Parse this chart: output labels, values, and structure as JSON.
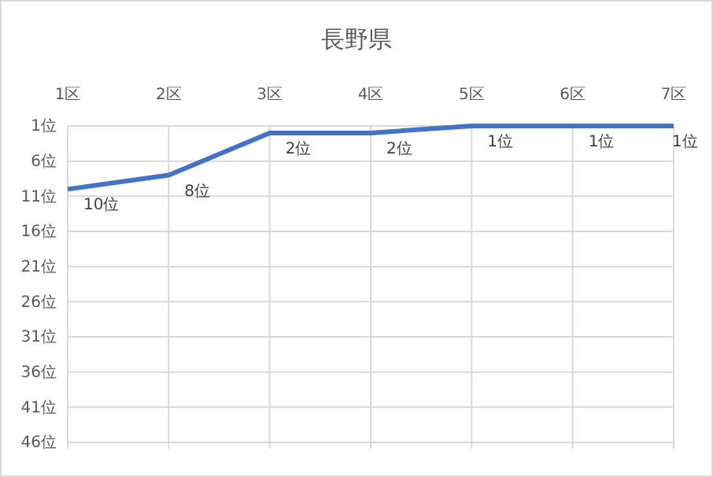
{
  "chart_data": {
    "type": "line",
    "title": "長野県",
    "categories": [
      "1区",
      "2区",
      "3区",
      "4区",
      "5区",
      "6区",
      "7区"
    ],
    "series": [
      {
        "color": "#4472c4",
        "values": [
          10,
          8,
          2,
          2,
          1,
          1,
          1
        ],
        "value_labels": [
          "10位",
          "8位",
          "2位",
          "2位",
          "1位",
          "1位",
          "1位"
        ]
      }
    ],
    "ylim": [
      46,
      1
    ],
    "yticks": [
      {
        "value": 1,
        "label": "1位"
      },
      {
        "value": 6,
        "label": "6位"
      },
      {
        "value": 11,
        "label": "11位"
      },
      {
        "value": 16,
        "label": "16位"
      },
      {
        "value": 21,
        "label": "21位"
      },
      {
        "value": 26,
        "label": "26位"
      },
      {
        "value": 31,
        "label": "31位"
      },
      {
        "value": 36,
        "label": "36位"
      },
      {
        "value": 41,
        "label": "41位"
      },
      {
        "value": 46,
        "label": "46位"
      }
    ],
    "grid": true,
    "marker": "none",
    "line_style": "solid"
  }
}
